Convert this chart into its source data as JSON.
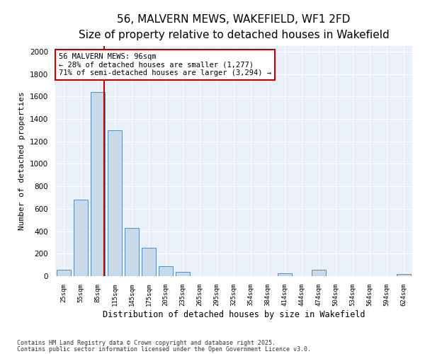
{
  "title": "56, MALVERN MEWS, WAKEFIELD, WF1 2FD",
  "subtitle": "Size of property relative to detached houses in Wakefield",
  "xlabel": "Distribution of detached houses by size in Wakefield",
  "ylabel": "Number of detached properties",
  "property_size": 96,
  "categories": [
    "25sqm",
    "55sqm",
    "85sqm",
    "115sqm",
    "145sqm",
    "175sqm",
    "205sqm",
    "235sqm",
    "265sqm",
    "295sqm",
    "325sqm",
    "354sqm",
    "384sqm",
    "414sqm",
    "444sqm",
    "474sqm",
    "504sqm",
    "534sqm",
    "564sqm",
    "594sqm",
    "624sqm"
  ],
  "bar_heights": [
    55,
    680,
    1640,
    1300,
    430,
    250,
    90,
    40,
    0,
    0,
    0,
    0,
    0,
    25,
    0,
    55,
    0,
    0,
    0,
    0,
    20
  ],
  "bar_color": "#c9d9e8",
  "bar_edge_color": "#5b8db8",
  "red_line_x": 2.37,
  "annotation_text": "56 MALVERN MEWS: 96sqm\n← 28% of detached houses are smaller (1,277)\n71% of semi-detached houses are larger (3,294) →",
  "annotation_box_color": "#c00000",
  "annotation_text_color": "#000000",
  "ylim": [
    0,
    2050
  ],
  "yticks": [
    0,
    200,
    400,
    600,
    800,
    1000,
    1200,
    1400,
    1600,
    1800,
    2000
  ],
  "footer1": "Contains HM Land Registry data © Crown copyright and database right 2025.",
  "footer2": "Contains public sector information licensed under the Open Government Licence v3.0.",
  "plot_bg_color": "#eaf0f8",
  "title_fontsize": 11,
  "subtitle_fontsize": 9.5,
  "bar_width": 0.85
}
